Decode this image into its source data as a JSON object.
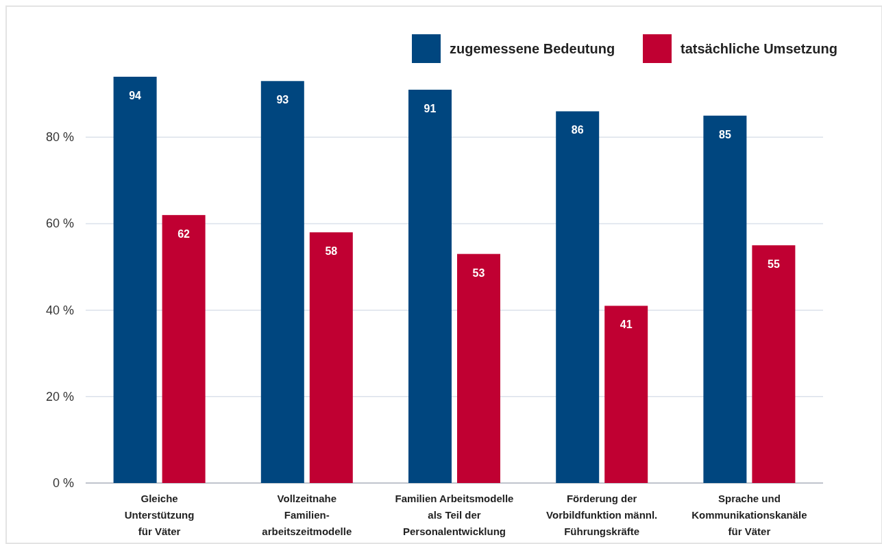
{
  "chart_data": {
    "type": "bar",
    "categories": [
      "Gleiche\nUnterstützung\nfür Väter",
      "Vollzeitnahe\nFamilien-\narbeitszeitmodelle",
      "Familien Arbeitsmodelle\nals Teil der\nPersonalentwicklung",
      "Förderung der\nVorbildfunktion männl.\nFührungskräfte",
      "Sprache und\nKommunikationskanäle\nfür Väter"
    ],
    "series": [
      {
        "name": "zugemessene Bedeutung",
        "color": "#00467f",
        "values": [
          94,
          93,
          91,
          86,
          85
        ]
      },
      {
        "name": "tatsächliche Umsetzung",
        "color": "#c00032",
        "values": [
          62,
          58,
          53,
          41,
          55
        ]
      }
    ],
    "ylim": [
      0,
      94
    ],
    "yticks": [
      {
        "value": 0,
        "label": "0 %"
      },
      {
        "value": 20,
        "label": "20 %"
      },
      {
        "value": 40,
        "label": "40 %"
      },
      {
        "value": 60,
        "label": "60 %"
      },
      {
        "value": 80,
        "label": "80 %"
      }
    ],
    "grid": "y",
    "legend": "top right",
    "data_labels": true
  }
}
